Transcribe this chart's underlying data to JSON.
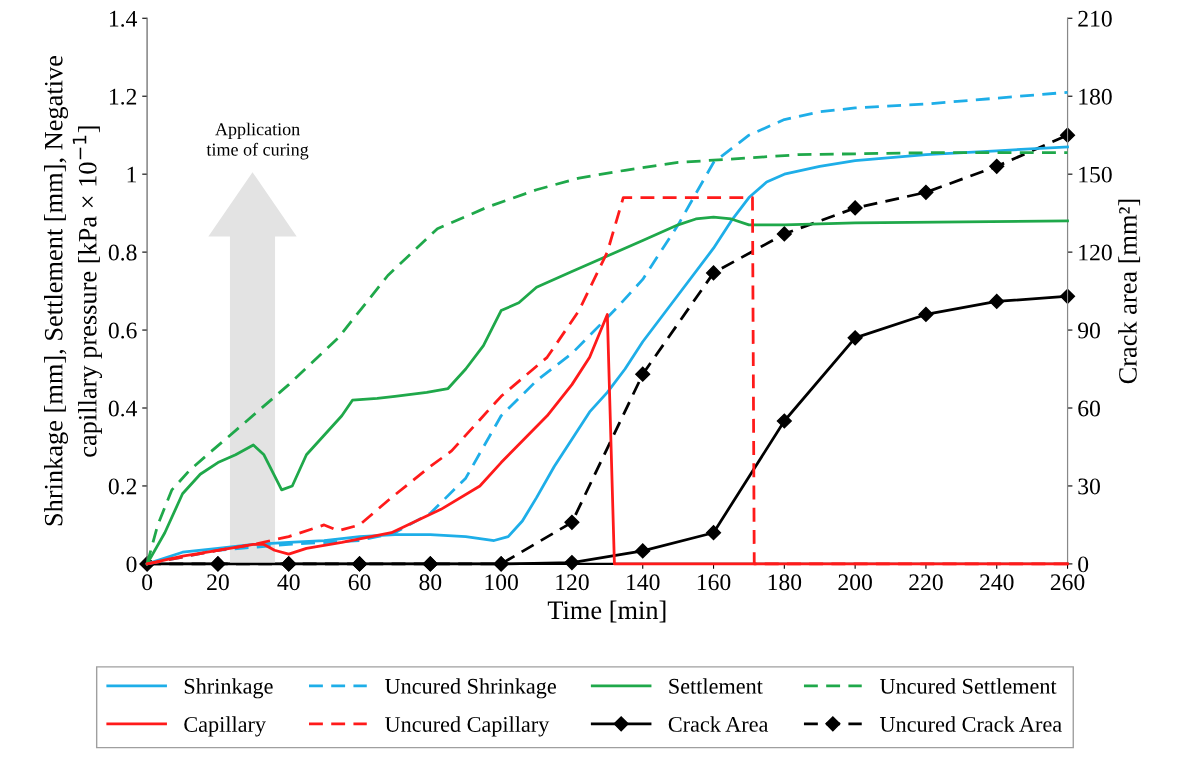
{
  "chart_data": {
    "type": "line",
    "xlabel": "Time [min]",
    "ylabel": "Shrinkage [mm], Settlement [mm], Negative\ncapillary pressure [kPa × 10$^{−1}$]",
    "y2label": "Crack area [mm²]",
    "annotations": [
      "Application\ntime of curing"
    ],
    "xlim": [
      0,
      260
    ],
    "xticks": [
      0,
      20,
      40,
      60,
      80,
      100,
      120,
      140,
      160,
      180,
      200,
      220,
      240,
      260
    ],
    "ylim": [
      0,
      1.4
    ],
    "yticks": [
      0,
      0.2,
      0.4,
      0.6,
      0.8,
      1,
      1.2,
      1.4
    ],
    "y2lim": [
      0,
      210
    ],
    "y2ticks": [
      0,
      30,
      60,
      90,
      120,
      150,
      180,
      210
    ],
    "grid": false,
    "legend": "bottom",
    "marker": "none",
    "line_style": "solid",
    "series": [
      {
        "name": "Shrinkage",
        "color": "#1eaee8",
        "x": [
          0,
          10,
          20,
          30,
          40,
          50,
          60,
          70,
          80,
          90,
          98,
          102,
          106,
          110,
          115,
          120,
          125,
          130,
          135,
          140,
          150,
          160,
          165,
          170,
          175,
          180,
          190,
          200,
          220,
          240,
          260
        ],
        "values": [
          0,
          0.03,
          0.04,
          0.05,
          0.055,
          0.06,
          0.07,
          0.075,
          0.075,
          0.07,
          0.06,
          0.07,
          0.11,
          0.17,
          0.25,
          0.32,
          0.39,
          0.44,
          0.5,
          0.57,
          0.69,
          0.81,
          0.88,
          0.94,
          0.98,
          1.0,
          1.02,
          1.035,
          1.05,
          1.06,
          1.07
        ]
      },
      {
        "name": "Uncured Shrinkage",
        "color": "#1eaee8",
        "line_style": "dashed",
        "x": [
          0,
          20,
          40,
          60,
          70,
          80,
          90,
          100,
          110,
          120,
          133,
          140,
          150,
          160,
          170,
          180,
          190,
          200,
          220,
          240,
          260
        ],
        "values": [
          0,
          0.035,
          0.05,
          0.06,
          0.08,
          0.13,
          0.22,
          0.38,
          0.47,
          0.54,
          0.66,
          0.73,
          0.87,
          1.03,
          1.1,
          1.14,
          1.16,
          1.17,
          1.18,
          1.195,
          1.21
        ]
      },
      {
        "name": "Settlement",
        "color": "#1fa84a",
        "x": [
          0,
          5,
          10,
          15,
          20,
          25,
          30,
          33,
          38,
          41,
          45,
          50,
          55,
          58,
          65,
          70,
          79,
          85,
          90,
          95,
          100,
          105,
          110,
          120,
          130,
          140,
          150,
          155,
          160,
          165,
          170,
          180,
          200,
          260
        ],
        "values": [
          0,
          0.08,
          0.18,
          0.23,
          0.26,
          0.28,
          0.305,
          0.28,
          0.19,
          0.2,
          0.28,
          0.33,
          0.38,
          0.42,
          0.425,
          0.43,
          0.44,
          0.45,
          0.5,
          0.56,
          0.65,
          0.67,
          0.71,
          0.75,
          0.79,
          0.83,
          0.87,
          0.885,
          0.89,
          0.885,
          0.87,
          0.87,
          0.875,
          0.88
        ]
      },
      {
        "name": "Uncured Settlement",
        "color": "#1fa84a",
        "line_style": "dashed",
        "x": [
          0,
          3,
          7,
          12,
          17,
          26,
          40,
          54,
          68,
          82,
          96,
          110,
          122,
          135,
          150,
          184,
          220,
          260
        ],
        "values": [
          0,
          0.1,
          0.19,
          0.24,
          0.28,
          0.35,
          0.46,
          0.58,
          0.74,
          0.86,
          0.915,
          0.96,
          0.99,
          1.01,
          1.03,
          1.05,
          1.055,
          1.055
        ]
      },
      {
        "name": "Capillary",
        "color": "#ff1a1a",
        "x": [
          0,
          10,
          20,
          30,
          33,
          36,
          40,
          45,
          55,
          69,
          83,
          94,
          100,
          113,
          120,
          125,
          130,
          132,
          260
        ],
        "values": [
          0,
          0.02,
          0.035,
          0.05,
          0.05,
          0.035,
          0.025,
          0.04,
          0.055,
          0.08,
          0.14,
          0.2,
          0.26,
          0.38,
          0.46,
          0.53,
          0.64,
          0,
          0
        ]
      },
      {
        "name": "Uncured Capillary",
        "color": "#ff1a1a",
        "line_style": "dashed",
        "x": [
          0,
          20,
          30,
          40,
          50,
          54,
          60,
          69,
          80,
          86,
          94,
          100,
          113,
          122,
          130,
          134.5,
          171,
          171.5,
          260
        ],
        "values": [
          0,
          0.035,
          0.05,
          0.07,
          0.1,
          0.085,
          0.1,
          0.17,
          0.25,
          0.29,
          0.37,
          0.43,
          0.53,
          0.65,
          0.8,
          0.94,
          0.94,
          0,
          0
        ]
      },
      {
        "name": "Crack Area",
        "color": "#000000",
        "axis": "y2",
        "marker": "diamond",
        "x": [
          0,
          20,
          40,
          60,
          80,
          100,
          120,
          140,
          160,
          180,
          200,
          220,
          240,
          260
        ],
        "values": [
          0,
          0,
          0,
          0,
          0,
          0,
          0.5,
          5,
          12,
          55,
          87,
          96,
          101,
          103
        ]
      },
      {
        "name": "Uncured Crack Area",
        "color": "#000000",
        "axis": "y2",
        "marker": "diamond",
        "line_style": "dashed",
        "x": [
          0,
          20,
          40,
          60,
          80,
          100,
          120,
          140,
          160,
          180,
          200,
          220,
          240,
          260
        ],
        "values": [
          0,
          0,
          0,
          0,
          0,
          0,
          16,
          73,
          112,
          127,
          137,
          143,
          153,
          165
        ]
      }
    ]
  }
}
